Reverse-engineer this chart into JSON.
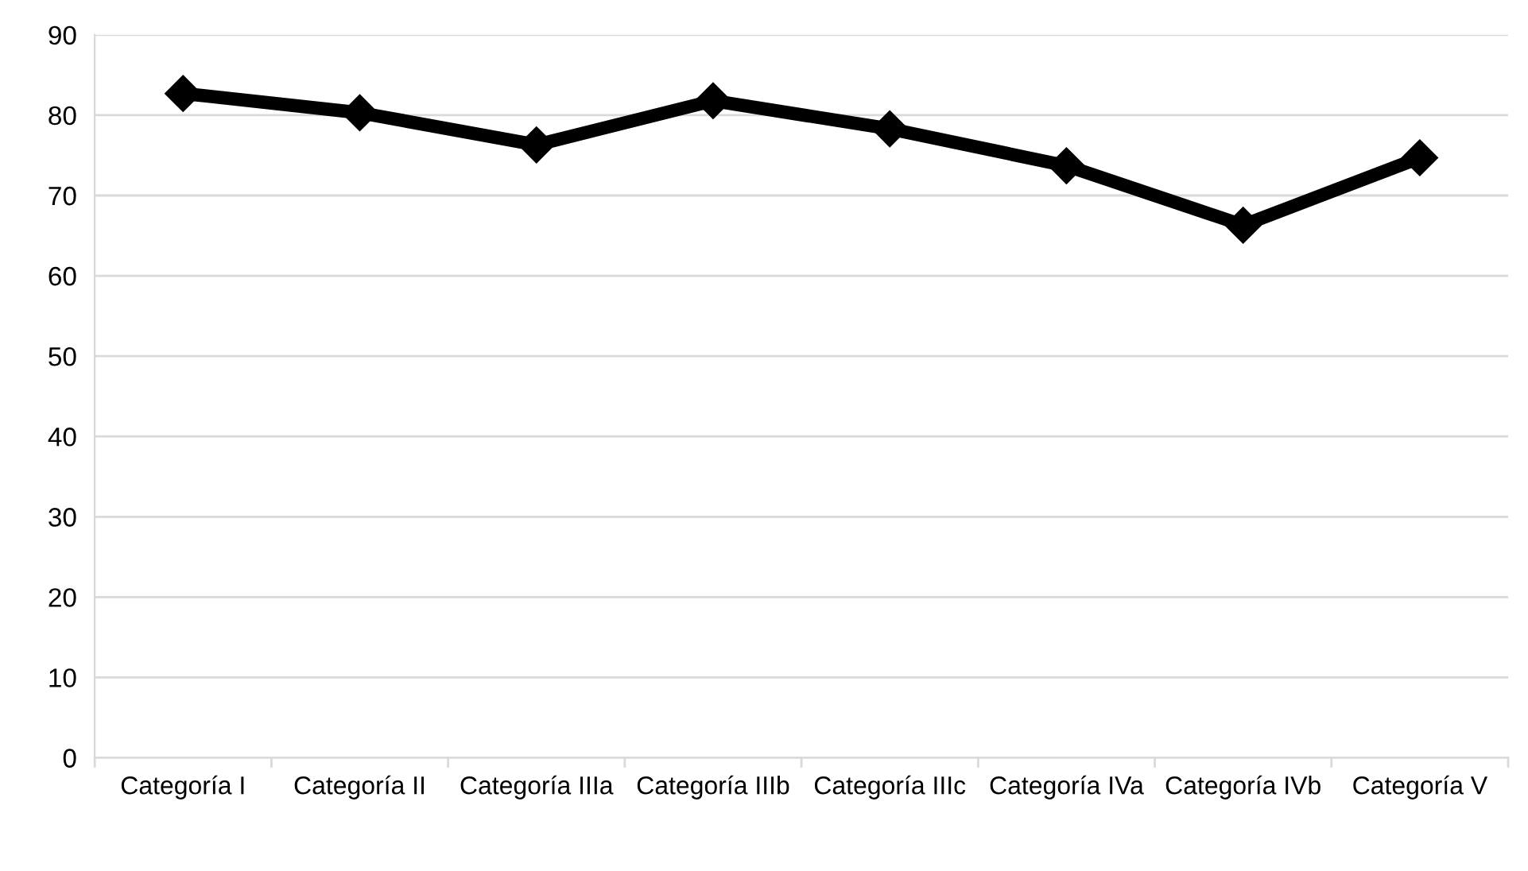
{
  "chart_data": {
    "type": "line",
    "categories": [
      "Categoría I",
      "Categoría II",
      "Categoría IIIa",
      "Categoría IIIb",
      "Categoría IIIc",
      "Categoría IVa",
      "Categoría IVb",
      "Categoría V"
    ],
    "series": [
      {
        "color": "#000000",
        "values": [
          82.7,
          80.3,
          76.3,
          81.8,
          78.3,
          73.7,
          66.3,
          74.7
        ]
      }
    ],
    "ylim": [
      0,
      90
    ],
    "yticks": [
      0,
      10,
      20,
      30,
      40,
      50,
      60,
      70,
      80,
      90
    ],
    "grid": "y",
    "marker": "diamond",
    "line_style": "solid"
  }
}
